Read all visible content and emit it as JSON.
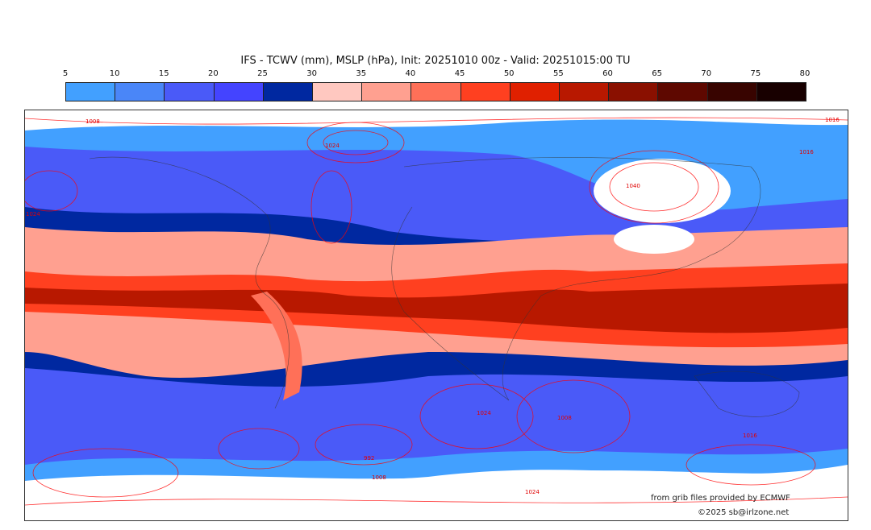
{
  "title": "IFS - TCWV (mm), MSLP (hPa), Init: 20251010 00z - Valid: 20251015:00 TU",
  "colorbar": {
    "ticks": [
      "5",
      "10",
      "15",
      "20",
      "25",
      "30",
      "35",
      "40",
      "45",
      "50",
      "55",
      "60",
      "65",
      "70",
      "75",
      "80"
    ],
    "colors": [
      "#42a0ff",
      "#4a86f8",
      "#4a5af8",
      "#4444ff",
      "#0028a0",
      "#ffc8c0",
      "#ffa090",
      "#ff7058",
      "#ff4020",
      "#e02000",
      "#b81800",
      "#8a1000",
      "#5e0800",
      "#380400",
      "#180000"
    ]
  },
  "map": {
    "pressure_labels": [
      "1008",
      "1024",
      "1016",
      "1040",
      "1024",
      "1016",
      "992",
      "1008",
      "1024",
      "1024",
      "1016",
      "1008"
    ]
  },
  "credits": {
    "source": "from grib files provided by ECMWF",
    "copyright": "©2025 sb@irlzone.net"
  }
}
